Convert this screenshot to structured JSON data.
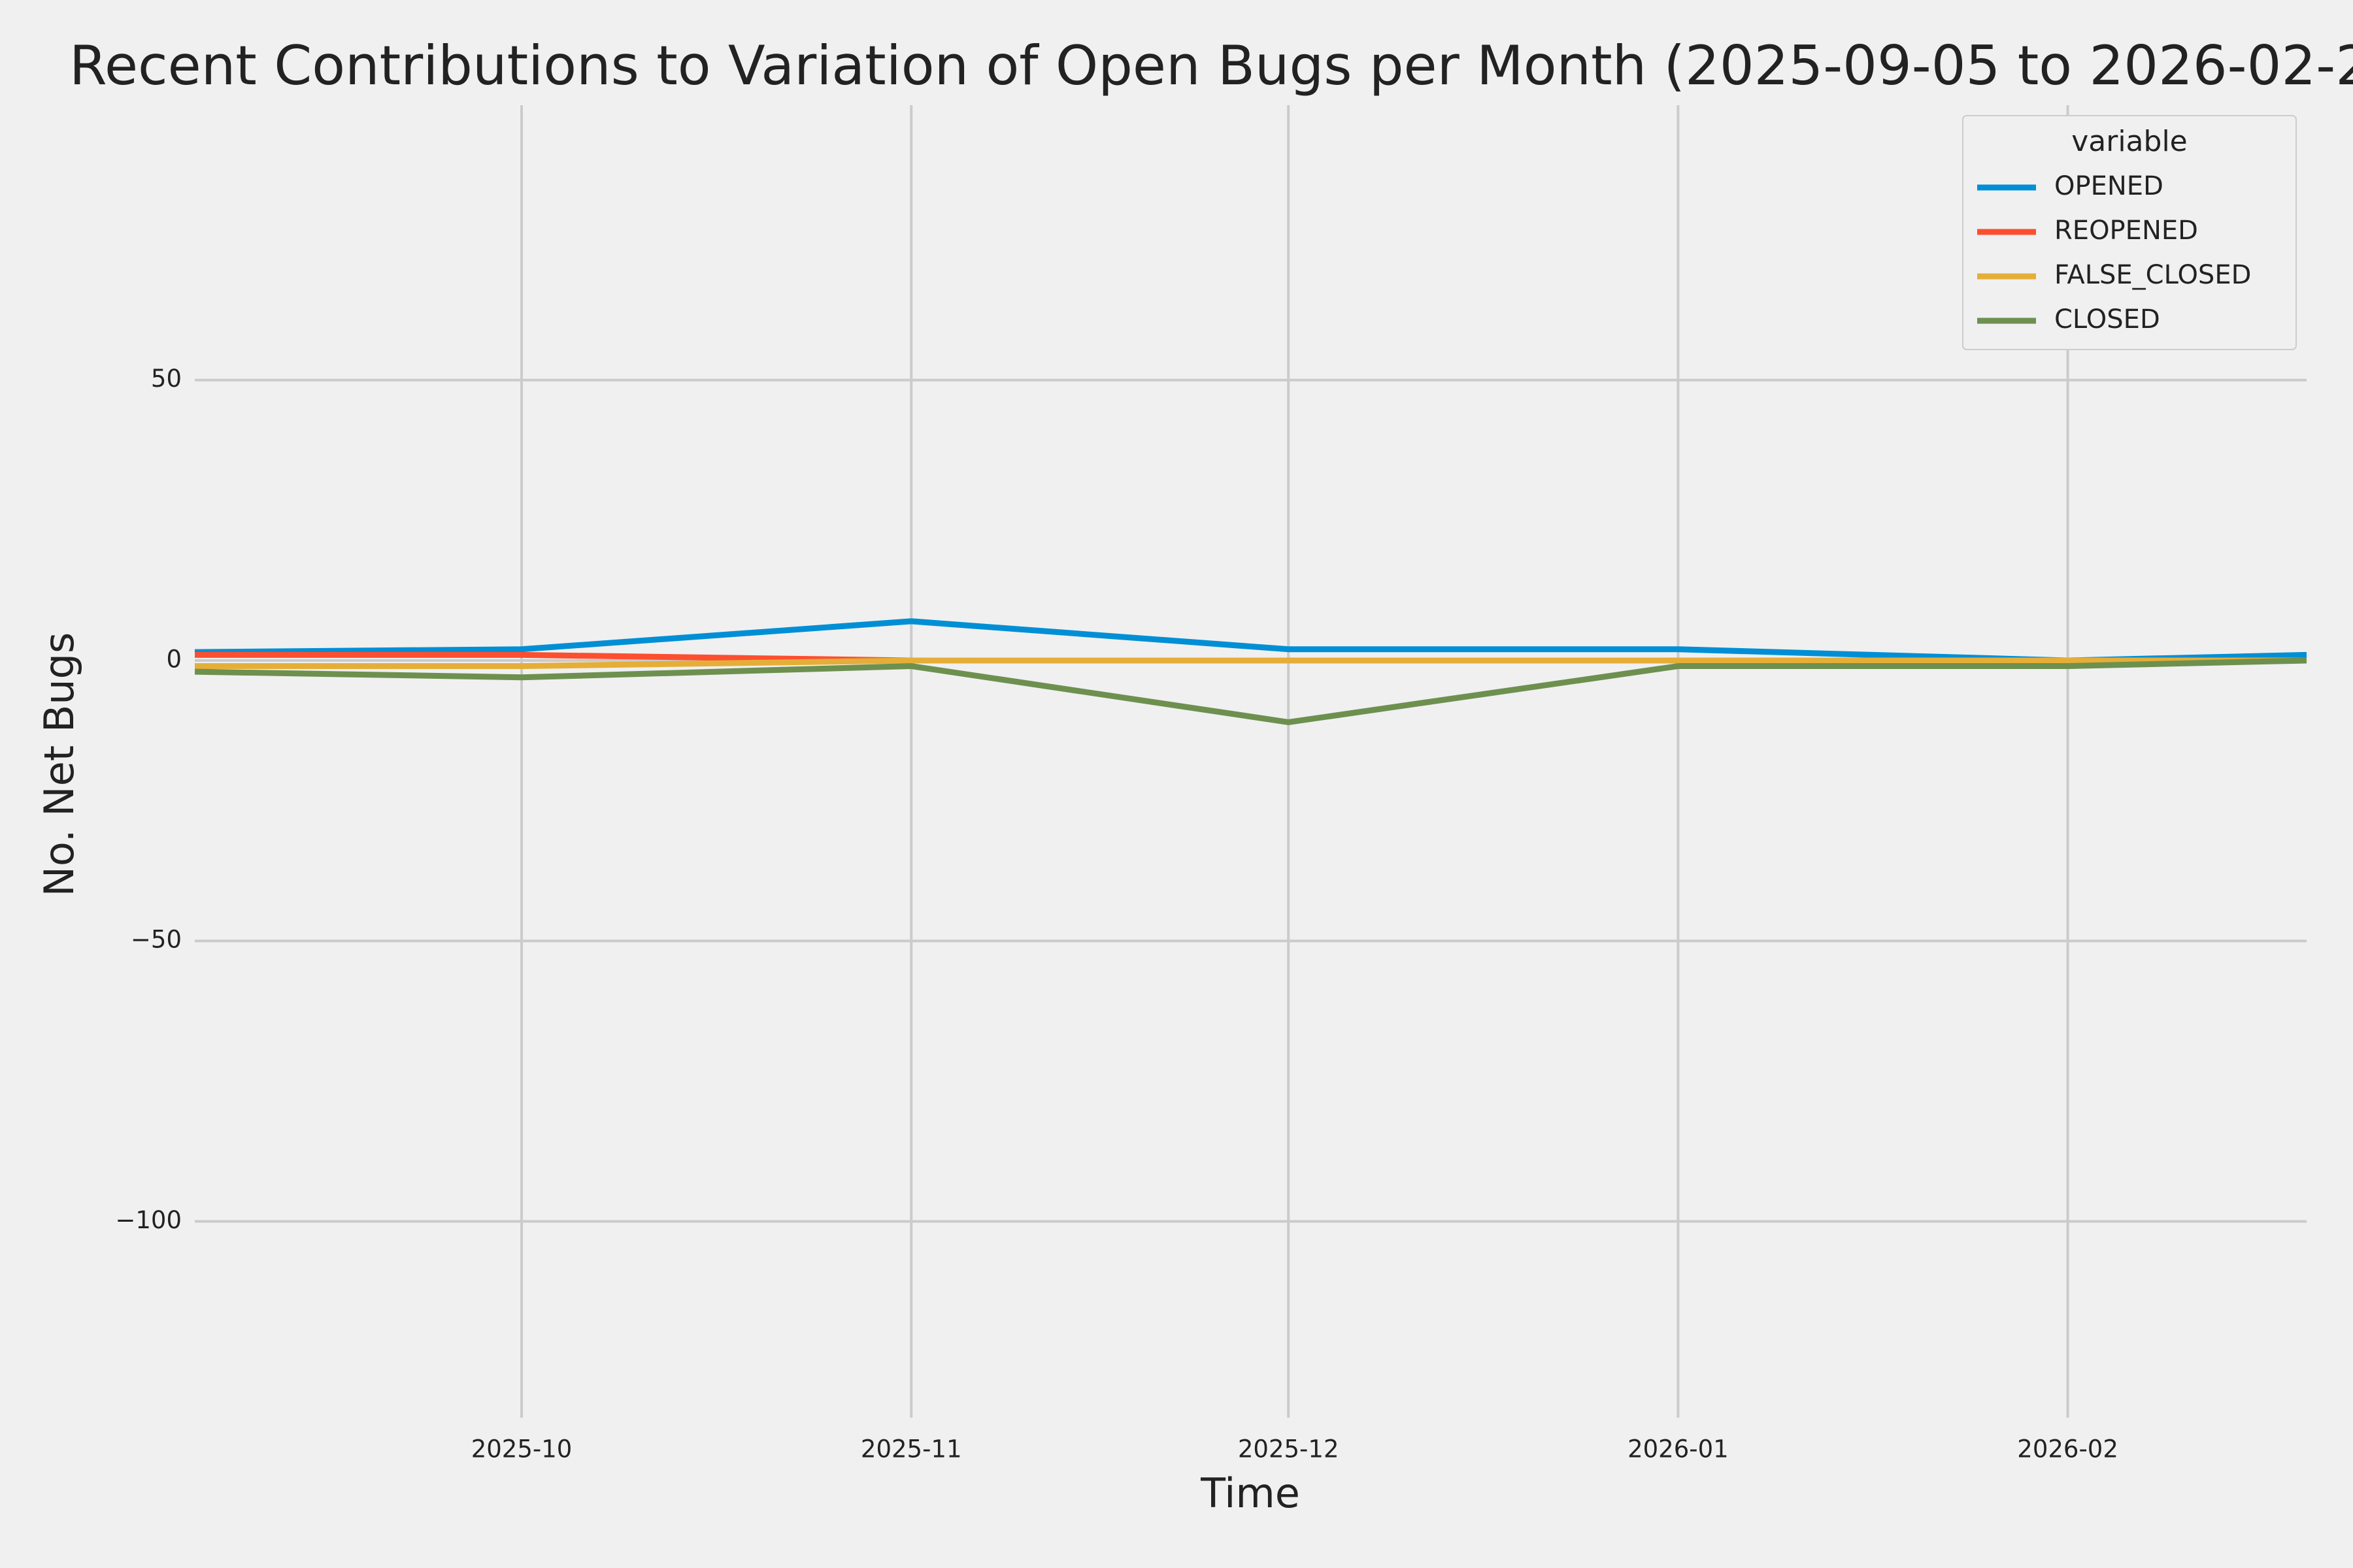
{
  "chart_data": {
    "type": "line",
    "title": "Recent Contributions to Variation of Open Bugs per Month (2025-09-05 to 2026-02-2",
    "xlabel": "Time",
    "ylabel": "No. Net Bugs",
    "x": [
      "2025-09-05",
      "2025-10-01",
      "2025-11-01",
      "2025-12-01",
      "2026-01-01",
      "2026-02-01",
      "2026-02-20"
    ],
    "series": [
      {
        "name": "OPENED",
        "color": "#008fd5",
        "values": [
          1.5,
          2,
          7,
          2,
          2,
          0,
          1
        ]
      },
      {
        "name": "REOPENED",
        "color": "#fc4f30",
        "values": [
          1,
          1,
          0,
          0,
          0,
          0,
          0
        ]
      },
      {
        "name": "FALSE_CLOSED",
        "color": "#e5ae38",
        "values": [
          -1,
          -1,
          0,
          0,
          0,
          0,
          0
        ]
      },
      {
        "name": "CLOSED",
        "color": "#6d904f",
        "values": [
          -2,
          -3,
          -1,
          -11,
          -1,
          -1,
          0
        ]
      }
    ],
    "legend_title": "variable",
    "legend": "upper right",
    "xlim": [
      "2025-09-05",
      "2026-02-20"
    ],
    "xticks": [
      {
        "value": "2025-10-01",
        "label": "2025-10"
      },
      {
        "value": "2025-11-01",
        "label": "2025-11"
      },
      {
        "value": "2025-12-01",
        "label": "2025-12"
      },
      {
        "value": "2026-01-01",
        "label": "2026-01"
      },
      {
        "value": "2026-02-01",
        "label": "2026-02"
      }
    ],
    "ylim": [
      -135,
      99
    ],
    "yticks": [
      {
        "value": -100,
        "label": "−100"
      },
      {
        "value": -50,
        "label": "−50"
      },
      0,
      50
    ],
    "grid": true
  }
}
